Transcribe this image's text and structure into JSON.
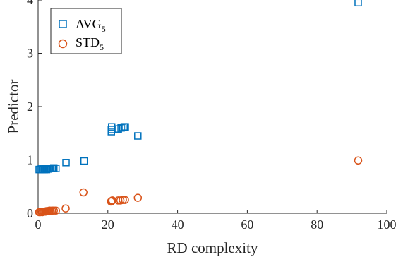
{
  "chart_data": {
    "type": "scatter",
    "title": "",
    "xlabel": "RD complexity",
    "ylabel": "Predictor",
    "xlim": [
      0,
      100
    ],
    "ylim": [
      0,
      4
    ],
    "xticks": [
      0,
      20,
      40,
      60,
      80,
      100
    ],
    "yticks": [
      0,
      1,
      2,
      3,
      4
    ],
    "grid": false,
    "legend_position": "top-left",
    "series": [
      {
        "name": "AVG",
        "name_subscript": "5",
        "marker": "square",
        "color": "#0072BD",
        "points": [
          [
            0.3,
            0.82
          ],
          [
            0.6,
            0.82
          ],
          [
            0.9,
            0.83
          ],
          [
            1.2,
            0.82
          ],
          [
            1.5,
            0.83
          ],
          [
            1.8,
            0.82
          ],
          [
            2.1,
            0.83
          ],
          [
            2.4,
            0.82
          ],
          [
            2.7,
            0.84
          ],
          [
            3.0,
            0.83
          ],
          [
            3.3,
            0.84
          ],
          [
            3.6,
            0.84
          ],
          [
            4.0,
            0.84
          ],
          [
            4.5,
            0.85
          ],
          [
            5.1,
            0.84
          ],
          [
            8.0,
            0.95
          ],
          [
            13.2,
            0.98
          ],
          [
            21.0,
            1.53
          ],
          [
            21.0,
            1.57
          ],
          [
            21.1,
            1.62
          ],
          [
            23.0,
            1.58
          ],
          [
            23.8,
            1.6
          ],
          [
            24.3,
            1.61
          ],
          [
            24.7,
            1.62
          ],
          [
            25.0,
            1.62
          ],
          [
            28.6,
            1.45
          ],
          [
            91.8,
            3.95
          ]
        ]
      },
      {
        "name": "STD",
        "name_subscript": "5",
        "marker": "circle",
        "color": "#D95319",
        "points": [
          [
            0.3,
            0.02
          ],
          [
            0.6,
            0.02
          ],
          [
            0.9,
            0.03
          ],
          [
            1.2,
            0.02
          ],
          [
            1.5,
            0.03
          ],
          [
            1.8,
            0.03
          ],
          [
            2.1,
            0.03
          ],
          [
            2.4,
            0.04
          ],
          [
            2.7,
            0.04
          ],
          [
            3.0,
            0.04
          ],
          [
            3.3,
            0.05
          ],
          [
            3.6,
            0.04
          ],
          [
            4.0,
            0.05
          ],
          [
            4.5,
            0.05
          ],
          [
            5.1,
            0.05
          ],
          [
            7.9,
            0.09
          ],
          [
            13.0,
            0.39
          ],
          [
            20.9,
            0.22
          ],
          [
            21.1,
            0.23
          ],
          [
            21.3,
            0.24
          ],
          [
            23.0,
            0.24
          ],
          [
            23.6,
            0.24
          ],
          [
            24.3,
            0.25
          ],
          [
            24.9,
            0.25
          ],
          [
            28.6,
            0.29
          ],
          [
            91.8,
            0.99
          ]
        ]
      }
    ]
  }
}
